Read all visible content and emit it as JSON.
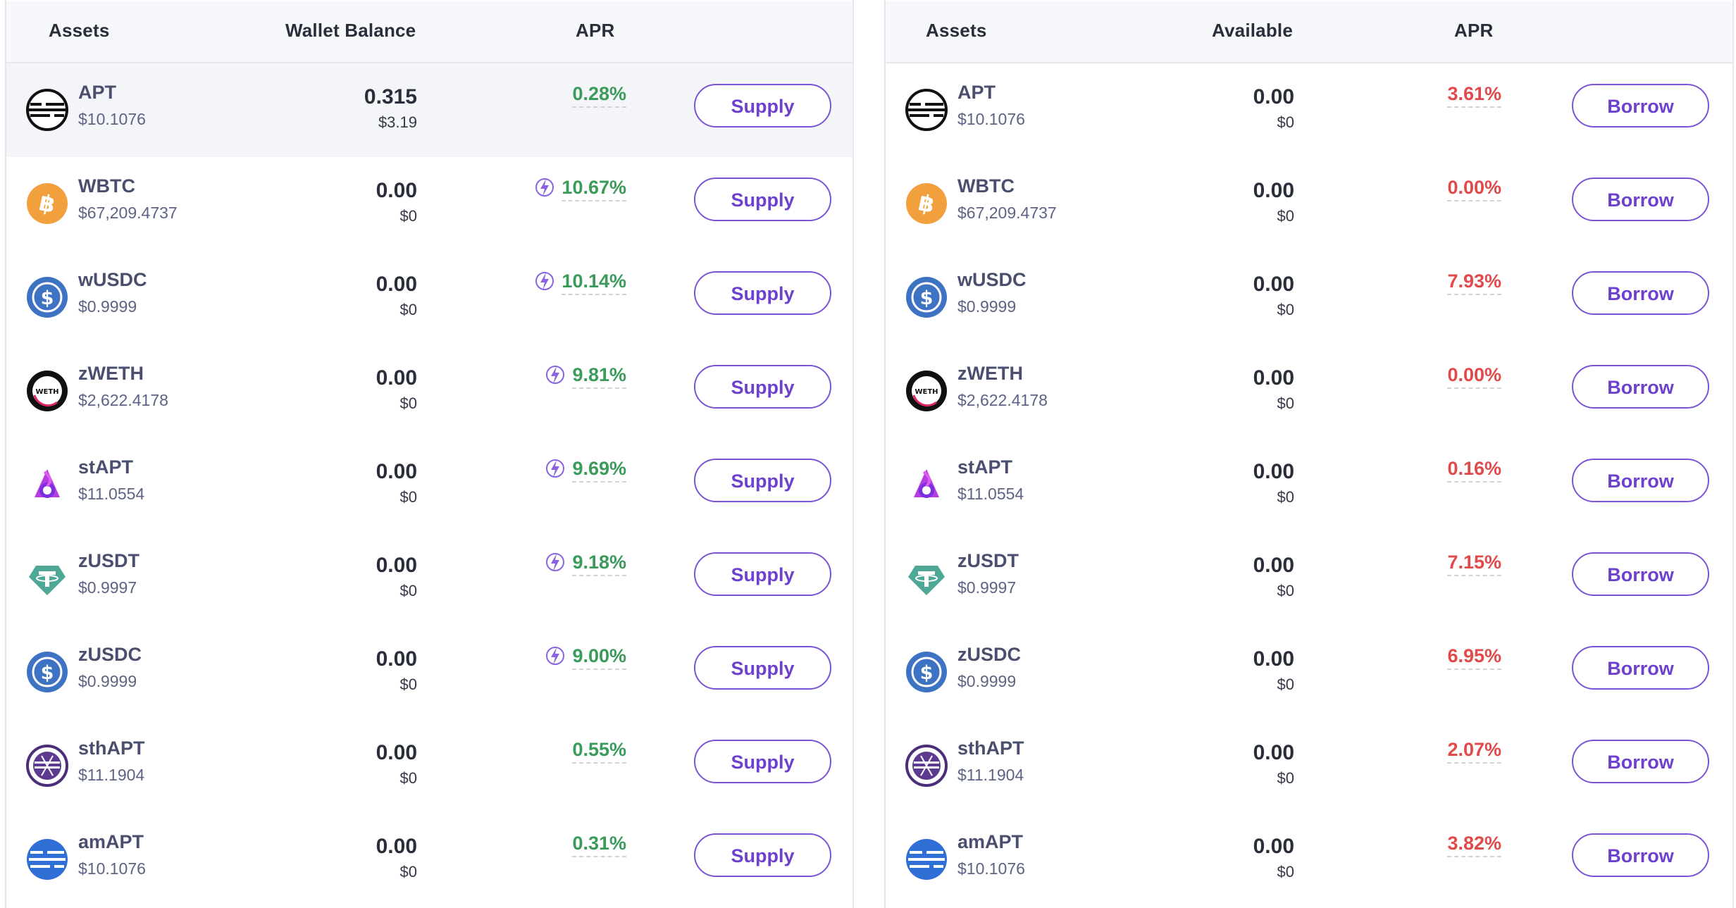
{
  "supply": {
    "headers": {
      "assets": "Assets",
      "balance": "Wallet Balance",
      "apr": "APR"
    },
    "button_label": "Supply",
    "rows": [
      {
        "name": "APT",
        "price": "$10.1076",
        "amount": "0.315",
        "usd": "$3.19",
        "apr": "0.28%",
        "boost": false,
        "icon": "apt-icon"
      },
      {
        "name": "WBTC",
        "price": "$67,209.4737",
        "amount": "0.00",
        "usd": "$0",
        "apr": "10.67%",
        "boost": true,
        "icon": "bitcoin-icon"
      },
      {
        "name": "wUSDC",
        "price": "$0.9999",
        "amount": "0.00",
        "usd": "$0",
        "apr": "10.14%",
        "boost": true,
        "icon": "usdc-icon"
      },
      {
        "name": "zWETH",
        "price": "$2,622.4178",
        "amount": "0.00",
        "usd": "$0",
        "apr": "9.81%",
        "boost": true,
        "icon": "weth-icon"
      },
      {
        "name": "stAPT",
        "price": "$11.0554",
        "amount": "0.00",
        "usd": "$0",
        "apr": "9.69%",
        "boost": true,
        "icon": "stapt-icon"
      },
      {
        "name": "zUSDT",
        "price": "$0.9997",
        "amount": "0.00",
        "usd": "$0",
        "apr": "9.18%",
        "boost": true,
        "icon": "tether-icon"
      },
      {
        "name": "zUSDC",
        "price": "$0.9999",
        "amount": "0.00",
        "usd": "$0",
        "apr": "9.00%",
        "boost": true,
        "icon": "usdc-icon"
      },
      {
        "name": "sthAPT",
        "price": "$11.1904",
        "amount": "0.00",
        "usd": "$0",
        "apr": "0.55%",
        "boost": false,
        "icon": "sthapt-icon"
      },
      {
        "name": "amAPT",
        "price": "$10.1076",
        "amount": "0.00",
        "usd": "$0",
        "apr": "0.31%",
        "boost": false,
        "icon": "amapt-icon"
      }
    ]
  },
  "borrow": {
    "headers": {
      "assets": "Assets",
      "available": "Available",
      "apr": "APR"
    },
    "button_label": "Borrow",
    "rows": [
      {
        "name": "APT",
        "price": "$10.1076",
        "amount": "0.00",
        "usd": "$0",
        "apr": "3.61%",
        "icon": "apt-icon"
      },
      {
        "name": "WBTC",
        "price": "$67,209.4737",
        "amount": "0.00",
        "usd": "$0",
        "apr": "0.00%",
        "icon": "bitcoin-icon"
      },
      {
        "name": "wUSDC",
        "price": "$0.9999",
        "amount": "0.00",
        "usd": "$0",
        "apr": "7.93%",
        "icon": "usdc-icon"
      },
      {
        "name": "zWETH",
        "price": "$2,622.4178",
        "amount": "0.00",
        "usd": "$0",
        "apr": "0.00%",
        "icon": "weth-icon"
      },
      {
        "name": "stAPT",
        "price": "$11.0554",
        "amount": "0.00",
        "usd": "$0",
        "apr": "0.16%",
        "icon": "stapt-icon"
      },
      {
        "name": "zUSDT",
        "price": "$0.9997",
        "amount": "0.00",
        "usd": "$0",
        "apr": "7.15%",
        "icon": "tether-icon"
      },
      {
        "name": "zUSDC",
        "price": "$0.9999",
        "amount": "0.00",
        "usd": "$0",
        "apr": "6.95%",
        "icon": "usdc-icon"
      },
      {
        "name": "sthAPT",
        "price": "$11.1904",
        "amount": "0.00",
        "usd": "$0",
        "apr": "2.07%",
        "icon": "sthapt-icon"
      },
      {
        "name": "amAPT",
        "price": "$10.1076",
        "amount": "0.00",
        "usd": "$0",
        "apr": "3.82%",
        "icon": "amapt-icon"
      }
    ]
  },
  "colors": {
    "apr_supply": "#3a9b5a",
    "apr_borrow": "#e14a4a",
    "accent": "#6e40cf",
    "boost": "#7b53d6"
  }
}
